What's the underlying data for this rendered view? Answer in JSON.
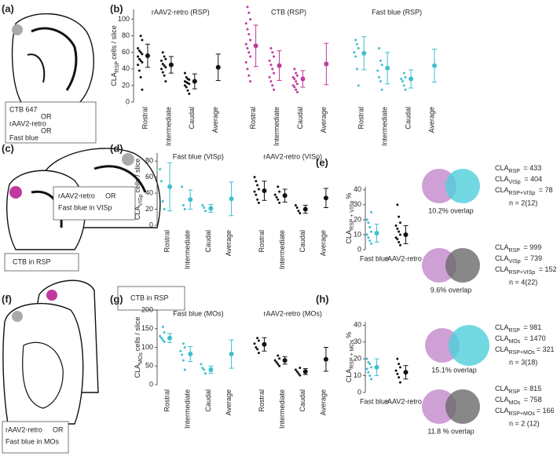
{
  "panel_labels": [
    "(a)",
    "(b)",
    "(c)",
    "(d)",
    "(e)",
    "(f)",
    "(g)",
    "(h)"
  ],
  "schematics": {
    "a": [
      {
        "text": "CTB 647",
        "color": "#c0399e"
      },
      {
        "text": "OR",
        "color": "#888"
      },
      {
        "text": "rAAV2-retro",
        "color": "#111"
      },
      {
        "text": "OR",
        "color": "#888"
      },
      {
        "text": "Fast blue",
        "color": "#3fbfd0"
      }
    ],
    "c_injection": [
      {
        "text": "rAAV2-retro",
        "color": "#111"
      },
      {
        "text": "OR",
        "color": "#888"
      },
      {
        "text": "Fast blue in VISp",
        "color": "#3fbfd0"
      }
    ],
    "c_ctb": {
      "text": "CTB in RSP",
      "color": "#c0399e"
    },
    "f_ctb": {
      "text": "CTB in RSP",
      "color": "#c0399e"
    },
    "f_injection": [
      {
        "text": "rAAV2-retro",
        "color": "#111"
      },
      {
        "text": "OR",
        "color": "#888"
      },
      {
        "text": "Fast blue in MOs",
        "color": "#3fbfd0"
      }
    ]
  },
  "chart_data": [
    {
      "type": "dot",
      "y_label": {
        "main": "CLA",
        "sub": "RSP",
        "rest": "cells / slice"
      },
      "ylim": [
        0,
        112
      ],
      "yticks": [
        0,
        20,
        40,
        60,
        80,
        100
      ],
      "series": [
        {
          "name": "rAAV2-retro (RSP)",
          "color": "#111",
          "categories": [
            "Rostral",
            "Intermediate",
            "Caudal",
            "Average"
          ],
          "points": [
            [
              15,
              30,
              38,
              45,
              48,
              50,
              52,
              55,
              58,
              60,
              62,
              65,
              75,
              80
            ],
            [
              25,
              32,
              36,
              40,
              42,
              44,
              46,
              50,
              52,
              55,
              60
            ],
            [
              10,
              14,
              18,
              20,
              22,
              23,
              24,
              25,
              27,
              28,
              30,
              35
            ],
            null
          ],
          "means": [
            56,
            45,
            25,
            42
          ],
          "errors": [
            14,
            10,
            9,
            16
          ]
        },
        {
          "name": "CTB  (RSP)",
          "color": "#c0399e",
          "categories": [
            "Rostral",
            "Intermediate",
            "Caudal",
            "Average"
          ],
          "points": [
            [
              25,
              32,
              40,
              48,
              55,
              60,
              65,
              70,
              75,
              82,
              88,
              95,
              100,
              108,
              115
            ],
            [
              15,
              20,
              25,
              30,
              35,
              40,
              45,
              50,
              55,
              60,
              65
            ],
            [
              12,
              15,
              18,
              20,
              22,
              25,
              28,
              30,
              32,
              35,
              40
            ],
            null
          ],
          "means": [
            68,
            44,
            28,
            46
          ],
          "errors": [
            25,
            18,
            10,
            25
          ]
        },
        {
          "name": "Fast blue (RSP)",
          "color": "#3fbfd0",
          "categories": [
            "Rostral",
            "Intermediate",
            "Caudal",
            "Average"
          ],
          "points": [
            [
              20,
              40,
              55,
              60,
              65,
              70,
              75
            ],
            [
              15,
              25,
              30,
              38,
              45,
              50,
              65
            ],
            [
              15,
              20,
              25,
              28,
              30,
              35
            ],
            null
          ],
          "means": [
            59,
            41,
            28,
            44
          ],
          "errors": [
            20,
            19,
            11,
            20
          ]
        }
      ]
    },
    {
      "type": "dot",
      "y_label": {
        "main": "CLA",
        "sub": "VISp",
        "rest": "cells / slice"
      },
      "ylim": [
        0,
        90
      ],
      "yticks": [
        0,
        20,
        40,
        60,
        80
      ],
      "series": [
        {
          "name": "Fast blue (VISp)",
          "color": "#3fbfd0",
          "categories": [
            "Rostral",
            "Intermediate",
            "Caudal",
            "Average"
          ],
          "points": [
            [
              20,
              30,
              55,
              70
            ],
            [
              20,
              25,
              48
            ],
            [
              18,
              22,
              25
            ],
            null
          ],
          "means": [
            48,
            32,
            21,
            33
          ],
          "errors": [
            30,
            12,
            5,
            21
          ]
        },
        {
          "name": "rAAV2-retro (VISp)",
          "color": "#111",
          "categories": [
            "Rostral",
            "Intermediate",
            "Caudal",
            "Average"
          ],
          "points": [
            [
              28,
              32,
              38,
              42,
              45,
              50,
              55,
              60
            ],
            [
              28,
              32,
              35,
              38,
              42,
              48
            ],
            [
              15,
              18,
              22,
              25
            ],
            null
          ],
          "means": [
            43,
            37,
            20,
            34
          ],
          "errors": [
            12,
            8,
            5,
            12
          ]
        }
      ]
    },
    {
      "type": "dot",
      "y_label": {
        "main": "CLA",
        "sub": "RSP + VISp",
        "rest": "%"
      },
      "ylim": [
        0,
        42
      ],
      "yticks": [
        0,
        10,
        20,
        30,
        40
      ],
      "series": [
        {
          "color": "#3fbfd0",
          "categories": [
            "Fast blue"
          ],
          "points": [
            [
              4,
              6,
              8,
              10,
              12,
              15,
              18,
              20,
              25
            ]
          ],
          "means": [
            11
          ],
          "errors": [
            6
          ]
        },
        {
          "color": "#111",
          "categories": [
            "rAAV2-retro"
          ],
          "points": [
            [
              3,
              5,
              7,
              8,
              10,
              12,
              14,
              16,
              18,
              22,
              30
            ]
          ],
          "means": [
            10
          ],
          "errors": [
            6
          ]
        }
      ]
    },
    {
      "type": "dot",
      "y_label": {
        "main": "CLA",
        "sub": "MOs",
        "rest": "cells / slice"
      },
      "ylim": [
        0,
        200
      ],
      "yticks": [
        0,
        50,
        100,
        150,
        200
      ],
      "series": [
        {
          "name": "Fast blue (MOs)",
          "color": "#3fbfd0",
          "categories": [
            "Rostral",
            "Intermediate",
            "Caudal",
            "Average"
          ],
          "points": [
            [
              115,
              120,
              125,
              130,
              140,
              155
            ],
            [
              40,
              65,
              80,
              90,
              100,
              110
            ],
            [
              30,
              40,
              45,
              55
            ],
            null
          ],
          "means": [
            125,
            82,
            40,
            82
          ],
          "errors": [
            12,
            20,
            10,
            38
          ]
        },
        {
          "name": "rAAV2-retro (MOs)",
          "color": "#111",
          "categories": [
            "Rostral",
            "Intermediate",
            "Caudal",
            "Average"
          ],
          "points": [
            [
              85,
              95,
              100,
              110,
              118,
              125
            ],
            [
              50,
              55,
              60,
              65,
              70,
              78
            ],
            [
              25,
              30,
              35,
              40,
              45
            ],
            null
          ],
          "means": [
            108,
            65,
            35,
            68
          ],
          "errors": [
            18,
            10,
            8,
            32
          ]
        }
      ]
    },
    {
      "type": "dot",
      "y_label": {
        "main": "CLA",
        "sub": "RSP + MOs",
        "rest": "%"
      },
      "ylim": [
        0,
        42
      ],
      "yticks": [
        0,
        10,
        20,
        30,
        40
      ],
      "series": [
        {
          "color": "#3fbfd0",
          "categories": [
            "Fast blue"
          ],
          "points": [
            [
              8,
              10,
              12,
              14,
              15,
              17,
              18,
              20
            ]
          ],
          "means": [
            15
          ],
          "errors": [
            5
          ]
        },
        {
          "color": "#111",
          "categories": [
            "rAAV2-retro"
          ],
          "points": [
            [
              6,
              9,
              11,
              13,
              15,
              17,
              20
            ]
          ],
          "means": [
            12
          ],
          "errors": [
            4
          ]
        }
      ]
    }
  ],
  "venn": [
    {
      "left_color": "#c58fce",
      "right_color": "#4fcfdc",
      "overlap": "10.2% overlap",
      "lines": [
        {
          "main": "CLA",
          "sub": "RSP",
          "rest": " = 433",
          "color": "#c0399e"
        },
        {
          "main": "CLA",
          "sub": "VISp",
          "rest": " = 404",
          "color": "#3fbfd0"
        },
        {
          "main": "CLA",
          "sub": "RSP+VISp",
          "rest": " = 78",
          "color": "#888"
        }
      ],
      "n": "n = 2(12)"
    },
    {
      "left_color": "#c58fce",
      "right_color": "#6a6a6a",
      "overlap": "9.6% overlap",
      "lines": [
        {
          "main": "CLA",
          "sub": "RSP",
          "rest": " = 999",
          "color": "#c0399e"
        },
        {
          "main": "CLA",
          "sub": "VISp",
          "rest": " = 739",
          "color": "#3fbfd0"
        },
        {
          "main": "CLA",
          "sub": "RSP+VISp",
          "rest": " = 152",
          "color": "#888"
        }
      ],
      "n": "n = 4(22)"
    },
    {
      "left_color": "#c58fce",
      "right_color": "#4fcfdc",
      "overlap": "15.1% overlap",
      "lines": [
        {
          "main": "CLA",
          "sub": "RSP",
          "rest": " = 981",
          "color": "#c0399e"
        },
        {
          "main": "CLA",
          "sub": "MOs",
          "rest": " = 1470",
          "color": "#3fbfd0"
        },
        {
          "main": "CLA",
          "sub": "RSP+MOs",
          "rest": "= 321",
          "color": "#888"
        }
      ],
      "n": "n = 3(18)"
    },
    {
      "left_color": "#c58fce",
      "right_color": "#6a6a6a",
      "overlap": "11.8 % overlap",
      "lines": [
        {
          "main": "CLA",
          "sub": "RSP",
          "rest": " = 815",
          "color": "#c0399e"
        },
        {
          "main": "CLA",
          "sub": "MOs",
          "rest": " = 758",
          "color": "#3fbfd0"
        },
        {
          "main": "CLA",
          "sub": "RSP+MOs",
          "rest": "= 166",
          "color": "#888"
        }
      ],
      "n": "n = 2 (12)"
    }
  ]
}
